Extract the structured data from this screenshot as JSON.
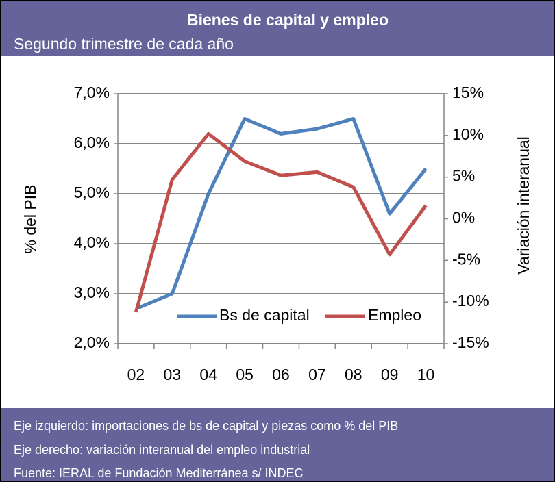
{
  "chart_data": {
    "type": "line",
    "title": "Bienes de capital y empleo",
    "subtitle": "Segundo trimestre de cada año",
    "categories": [
      "02",
      "03",
      "04",
      "05",
      "06",
      "07",
      "08",
      "09",
      "10"
    ],
    "series": [
      {
        "name": "Bs de capital",
        "color": "#4f81bd",
        "values": [
          2.7,
          3.0,
          5.0,
          6.5,
          6.2,
          6.3,
          6.5,
          4.6,
          5.5
        ]
      },
      {
        "name": "Empleo",
        "color": "#c0504d",
        "axis": "y2",
        "values": [
          -11.2,
          4.7,
          10.2,
          6.9,
          5.2,
          5.6,
          3.8,
          -4.3,
          1.6
        ]
      }
    ],
    "ylabel": "% del PIB",
    "y2label": "Variación interanual",
    "ylim": [
      2,
      7
    ],
    "yticks": [
      {
        "value": 2,
        "label": "2,0%"
      },
      {
        "value": 3,
        "label": "3,0%"
      },
      {
        "value": 4,
        "label": "4,0%"
      },
      {
        "value": 5,
        "label": "5,0%"
      },
      {
        "value": 6,
        "label": "6,0%"
      },
      {
        "value": 7,
        "label": "7,0%"
      }
    ],
    "y2lim": [
      -15,
      15
    ],
    "y2ticks": [
      {
        "value": -15,
        "label": "-15%"
      },
      {
        "value": -10,
        "label": "-10%"
      },
      {
        "value": -5,
        "label": "-5%"
      },
      {
        "value": 0,
        "label": "0%"
      },
      {
        "value": 5,
        "label": "5%"
      },
      {
        "value": 10,
        "label": "10%"
      },
      {
        "value": 15,
        "label": "15%"
      }
    ],
    "grid": true,
    "legend": "bottom",
    "notes": [
      "Eje izquierdo: importaciones de bs de capital y piezas como % del PIB",
      "Eje derecho: variación interanual del empleo industrial",
      "Fuente: IERAL de Fundación Mediterránea s/ INDEC"
    ]
  }
}
